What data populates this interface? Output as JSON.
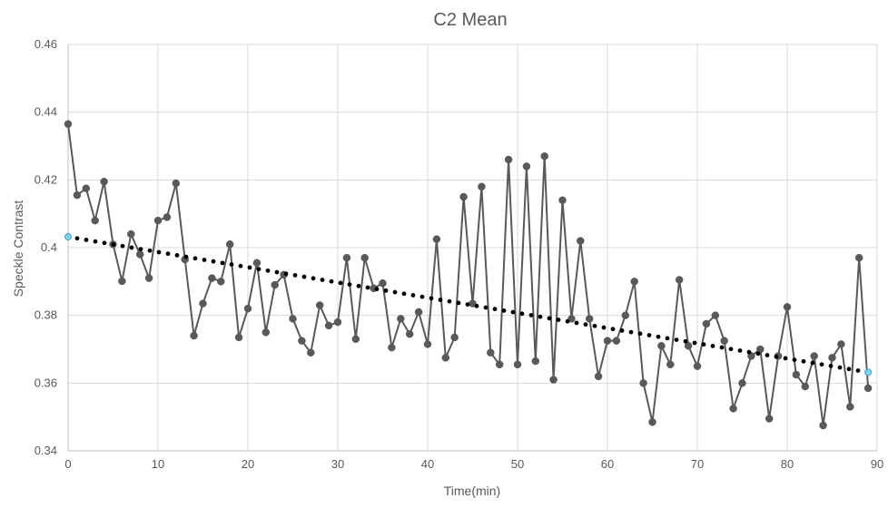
{
  "chart_data": {
    "type": "line",
    "title": "C2 Mean",
    "xlabel": "Time(min)",
    "ylabel": "Speckle Contrast",
    "xlim": [
      0,
      90
    ],
    "ylim": [
      0.34,
      0.46
    ],
    "x_ticks": [
      "0",
      "10",
      "20",
      "30",
      "40",
      "50",
      "60",
      "70",
      "80",
      "90"
    ],
    "y_ticks": [
      "0.34",
      "0.36",
      "0.38",
      "0.4",
      "0.42",
      "0.44",
      "0.46"
    ],
    "grid": true,
    "legend": "none",
    "series": [
      {
        "type": "line",
        "marker": "circle",
        "color": "#595959",
        "x": [
          0,
          1,
          2,
          3,
          4,
          5,
          6,
          7,
          8,
          9,
          10,
          11,
          12,
          13,
          14,
          15,
          16,
          17,
          18,
          19,
          20,
          21,
          22,
          23,
          24,
          25,
          26,
          27,
          28,
          29,
          30,
          31,
          32,
          33,
          34,
          35,
          36,
          37,
          38,
          39,
          40,
          41,
          42,
          43,
          44,
          45,
          46,
          47,
          48,
          49,
          50,
          51,
          52,
          53,
          54,
          55,
          56,
          57,
          58,
          59,
          60,
          61,
          62,
          63,
          64,
          65,
          66,
          67,
          68,
          69,
          70,
          71,
          72,
          73,
          74,
          75,
          76,
          77,
          78,
          79,
          80,
          81,
          82,
          83,
          84,
          85,
          86,
          87,
          88,
          89
        ],
        "y": [
          0.4365,
          0.4155,
          0.4175,
          0.408,
          0.4195,
          0.401,
          0.3901,
          0.404,
          0.398,
          0.391,
          0.408,
          0.409,
          0.419,
          0.3965,
          0.374,
          0.3835,
          0.391,
          0.39,
          0.401,
          0.3735,
          0.382,
          0.3955,
          0.375,
          0.389,
          0.392,
          0.379,
          0.3725,
          0.369,
          0.383,
          0.377,
          0.378,
          0.397,
          0.373,
          0.397,
          0.388,
          0.3895,
          0.3705,
          0.379,
          0.3745,
          0.381,
          0.3715,
          0.4025,
          0.3675,
          0.3735,
          0.415,
          0.3835,
          0.418,
          0.369,
          0.3655,
          0.426,
          0.3655,
          0.424,
          0.3665,
          0.427,
          0.361,
          0.414,
          0.379,
          0.402,
          0.379,
          0.362,
          0.3725,
          0.3725,
          0.38,
          0.39,
          0.36,
          0.3485,
          0.371,
          0.3655,
          0.3905,
          0.371,
          0.365,
          0.3775,
          0.38,
          0.3725,
          0.3525,
          0.36,
          0.368,
          0.37,
          0.3495,
          0.368,
          0.3825,
          0.3625,
          0.359,
          0.368,
          0.3475,
          0.3675,
          0.3715,
          0.353,
          0.397,
          0.3585
        ]
      },
      {
        "type": "trendline",
        "style": "dotted",
        "color": "#000000",
        "endpoint_marker_color": "#7fd3f2",
        "x": [
          0,
          89
        ],
        "y": [
          0.4032,
          0.3632
        ]
      }
    ]
  }
}
